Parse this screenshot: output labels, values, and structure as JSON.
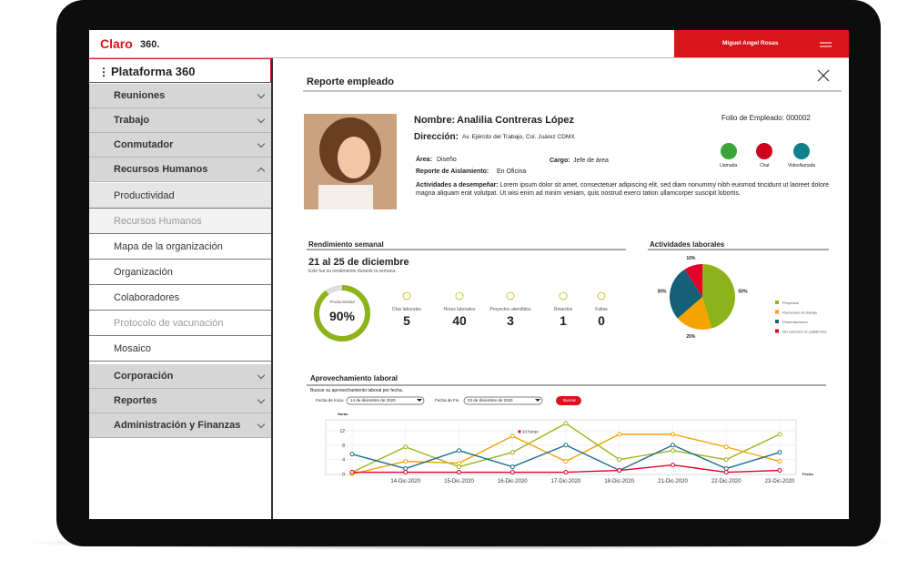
{
  "header": {
    "logo": [
      "Claro",
      "360."
    ],
    "user": "Miguel Angel Rosas"
  },
  "sidebar": {
    "title": "Plataforma 360",
    "menu": [
      "Reuniones",
      "Trabajo",
      "Conmutador",
      "Recursos Humanos"
    ],
    "submenu": [
      "Productividad",
      "Recursos Humanos",
      "Mapa de la organización",
      "Organización",
      "Colaboradores",
      "Protocolo de vacunación",
      "Mosaico"
    ],
    "menu_bottom": [
      "Corporación",
      "Reportes",
      "Administración y Finanzas"
    ]
  },
  "report": {
    "title": "Reporte empleado",
    "name": {
      "label": "Nombre:",
      "value": "Analilia Contreras López"
    },
    "folio": "Folio de Empleado: 000002",
    "address": {
      "label": "Dirección:",
      "value": "Av. Ejército del Trabajo, Col. Juárez CDMX"
    },
    "area": {
      "label": "Área:",
      "value": "Diseño"
    },
    "position": {
      "label": "Cargo:",
      "value": "Jefe de área"
    },
    "isolation": {
      "label": "Reporte de Aislamiento:",
      "value": "En Oficina"
    },
    "activities": {
      "label": "Actividades a desempeñar:",
      "value": "Lorem ipsum dolor sit amet, consectetuer adipiscing elit, sed diam nonummy nibh euismod tincidunt ut laoreet dolore magna aliquam erat volutpat. Ut wisi enim ad minim veniam, quis nostrud exerci tation ullamcorper suscipit lobortis."
    },
    "actions": [
      "Llamada",
      "Chat",
      "Videollamada"
    ]
  },
  "weekly": {
    "title": "Rendimiento semanal",
    "range": "21 al 25 de diciembre",
    "subtitle": "Este fue su rendimiento durante la semana.",
    "productivity": {
      "label": "Productividad",
      "value": 90,
      "value_label": "90%",
      "color": "#8db31a"
    },
    "stats": [
      {
        "label": "Días laborales",
        "value": 5
      },
      {
        "label": "Horas laborales",
        "value": 40
      },
      {
        "label": "Proyectos atendidos",
        "value": 3
      },
      {
        "label": "Retardos",
        "value": 1
      },
      {
        "label": "Faltas",
        "value": 0
      }
    ]
  },
  "activities_chart": {
    "type": "pie",
    "title": "Actividades laborales",
    "categories": [
      "Proyectos",
      "Reuniones de trabajo",
      "Presentaciones",
      "Sin conexión en plataforma"
    ],
    "values": [
      50,
      20,
      30,
      10
    ],
    "value_labels": [
      "50%",
      "20%",
      "30%",
      "10%"
    ],
    "colors": [
      "#8db31a",
      "#f5a300",
      "#155f77",
      "#e4002b"
    ]
  },
  "usage": {
    "title": "Aprovechamiento laboral",
    "hint": "Buscar su aprovechamiento laboral por fecha.",
    "start": {
      "label": "Fecha de Inicio",
      "value": "14 de diciembre de 2020"
    },
    "end": {
      "label": "Fecha de Fin",
      "value": "23 de diciembre de 2020"
    },
    "button": "Buscar",
    "chart": {
      "type": "line",
      "ylabel": "Horas",
      "xlabel": "Fecha",
      "categories": [
        null,
        "14-Dic-2020",
        "15-Dic-2020",
        "16-Dic-2020",
        "17-Dic-2020",
        "18-Dic-2020",
        "21-Dic-2020",
        "22-Dic-2020",
        "23-Dic-2020"
      ],
      "series": [
        {
          "color": "#9bb51c",
          "values": [
            0.5,
            7.5,
            2,
            6,
            14,
            4,
            6.5,
            4,
            11
          ]
        },
        {
          "color": "#f5a300",
          "values": [
            0,
            3.5,
            3,
            10.5,
            3.5,
            11,
            11,
            7.5,
            3.5
          ]
        },
        {
          "color": "#1d6b8a",
          "values": [
            5.5,
            1.5,
            6.5,
            2,
            8,
            1,
            8,
            1.5,
            6
          ]
        },
        {
          "color": "#e4002b",
          "values": [
            0.5,
            0.5,
            0.5,
            0.5,
            0.5,
            1,
            2.5,
            0.5,
            1
          ]
        }
      ],
      "ylim": [
        0,
        15
      ],
      "yticks": [
        0,
        4,
        8,
        12
      ],
      "grid": true,
      "annotation": "10 horas"
    }
  }
}
